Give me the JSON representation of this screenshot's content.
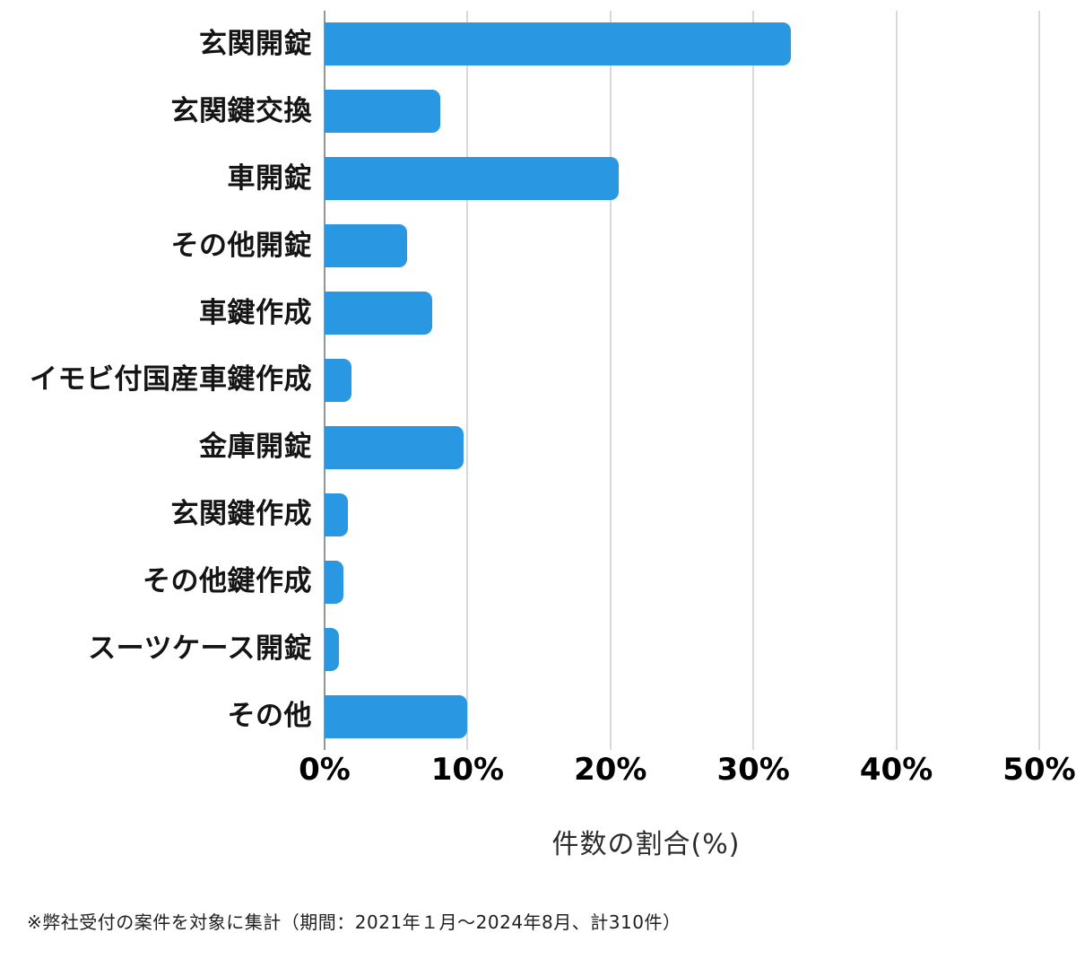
{
  "chart_data": {
    "type": "bar",
    "orientation": "horizontal",
    "title": "",
    "categories": [
      "玄関開錠",
      "玄関鍵交換",
      "車開錠",
      "その他開錠",
      "車鍵作成",
      "イモビ付国産車鍵作成",
      "金庫開錠",
      "玄関鍵作成",
      "その他鍵作成",
      "スーツケース開錠",
      "その他"
    ],
    "values": [
      32.6,
      8.1,
      20.6,
      5.8,
      7.5,
      1.9,
      9.7,
      1.6,
      1.3,
      1.0,
      10.0
    ],
    "xlabel": "件数の割合(%)",
    "ylabel": "",
    "xlim": [
      0,
      50
    ],
    "xticks": [
      "0%",
      "10%",
      "20%",
      "30%",
      "40%",
      "50%"
    ],
    "xtick_values": [
      0,
      10,
      20,
      30,
      40,
      50
    ],
    "bar_color": "#2997e2",
    "gridline_color": "#d9d9d9",
    "axis_line_color": "#949494",
    "grid": true,
    "legend_position": "none"
  },
  "footnote": "※弊社受付の案件を対象に集計（期間：2021年１月～2024年8月、計310件）"
}
